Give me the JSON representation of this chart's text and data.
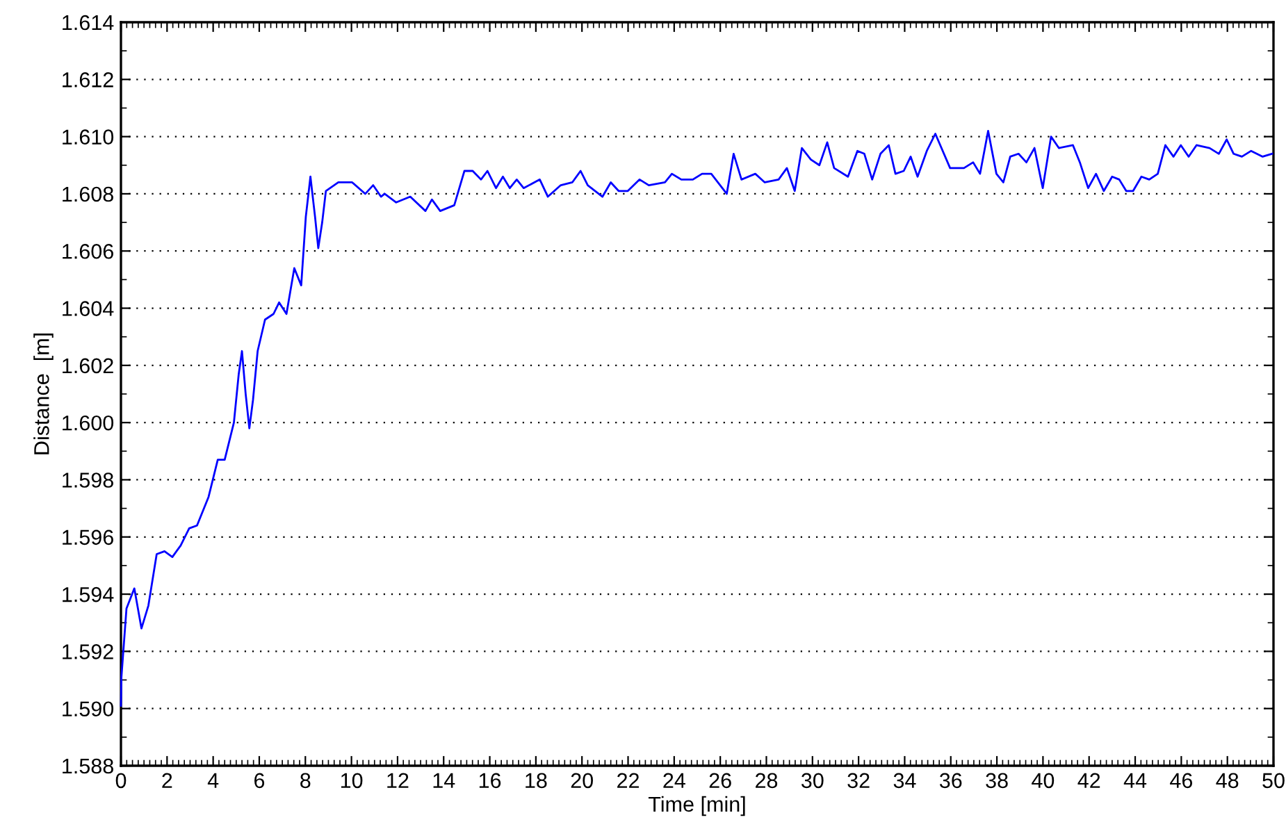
{
  "chart_data": {
    "type": "line",
    "xlabel": "Time [min]",
    "ylabel": "Distance  [m]",
    "xlim": [
      0,
      50
    ],
    "ylim": [
      1.588,
      1.614
    ],
    "xticks": [
      0,
      2,
      4,
      6,
      8,
      10,
      12,
      14,
      16,
      18,
      20,
      22,
      24,
      26,
      28,
      30,
      32,
      34,
      36,
      38,
      40,
      42,
      44,
      46,
      48,
      50
    ],
    "yticks": [
      {
        "value": 1.588,
        "label": "1.588"
      },
      {
        "value": 1.59,
        "label": "1.590"
      },
      {
        "value": 1.592,
        "label": "1.592"
      },
      {
        "value": 1.594,
        "label": "1.594"
      },
      {
        "value": 1.596,
        "label": "1.596"
      },
      {
        "value": 1.598,
        "label": "1.598"
      },
      {
        "value": 1.6,
        "label": "1.600"
      },
      {
        "value": 1.602,
        "label": "1.602"
      },
      {
        "value": 1.604,
        "label": "1.604"
      },
      {
        "value": 1.606,
        "label": "1.606"
      },
      {
        "value": 1.608,
        "label": "1.608"
      },
      {
        "value": 1.61,
        "label": "1.610"
      },
      {
        "value": 1.612,
        "label": "1.612"
      },
      {
        "value": 1.614,
        "label": "1.614"
      }
    ],
    "grid": "y",
    "line_style": "solid",
    "marker": "none",
    "series": [
      {
        "color": "#0000ff",
        "x": [
          0,
          0.02,
          0.24,
          0.58,
          0.89,
          1.19,
          1.55,
          1.89,
          2.23,
          2.59,
          2.96,
          3.3,
          3.8,
          4.2,
          4.5,
          4.9,
          5.11,
          5.25,
          5.41,
          5.57,
          5.73,
          5.93,
          6.25,
          6.62,
          6.86,
          7.18,
          7.52,
          7.82,
          8.02,
          8.22,
          8.42,
          8.56,
          8.73,
          8.89,
          9.43,
          10.03,
          10.6,
          10.94,
          11.28,
          11.44,
          11.94,
          12.55,
          13.21,
          13.49,
          13.85,
          14.46,
          14.9,
          15.26,
          15.62,
          15.9,
          16.27,
          16.57,
          16.87,
          17.17,
          17.47,
          18.17,
          18.52,
          19.08,
          19.58,
          19.94,
          20.25,
          20.89,
          21.25,
          21.59,
          21.99,
          22.5,
          22.9,
          23.6,
          23.9,
          24.31,
          24.81,
          25.21,
          25.61,
          26.28,
          26.58,
          26.92,
          27.52,
          27.93,
          28.53,
          28.89,
          29.23,
          29.54,
          29.93,
          30.3,
          30.64,
          30.94,
          31.54,
          31.95,
          32.25,
          32.59,
          32.95,
          33.31,
          33.6,
          33.96,
          34.26,
          34.56,
          34.96,
          35.33,
          35.97,
          36.57,
          36.97,
          37.27,
          37.62,
          37.98,
          38.28,
          38.58,
          38.94,
          39.28,
          39.63,
          39.99,
          40.35,
          40.69,
          41.3,
          41.6,
          41.96,
          42.3,
          42.64,
          43.0,
          43.31,
          43.61,
          43.91,
          44.27,
          44.61,
          44.98,
          45.31,
          45.66,
          45.98,
          46.32,
          46.66,
          47.23,
          47.63,
          47.97,
          48.27,
          48.63,
          49.03,
          49.53,
          49.94
        ],
        "values": [
          1.5901,
          1.5911,
          1.5935,
          1.5942,
          1.5928,
          1.5936,
          1.5954,
          1.5955,
          1.5953,
          1.5957,
          1.5963,
          1.5964,
          1.5974,
          1.5987,
          1.5987,
          1.6,
          1.6017,
          1.6025,
          1.601,
          1.5998,
          1.6008,
          1.6025,
          1.6036,
          1.6038,
          1.6042,
          1.6038,
          1.6054,
          1.6048,
          1.6072,
          1.6086,
          1.6072,
          1.6061,
          1.607,
          1.6081,
          1.6084,
          1.6084,
          1.608,
          1.6083,
          1.6079,
          1.608,
          1.6077,
          1.6079,
          1.6074,
          1.6078,
          1.6074,
          1.6076,
          1.6088,
          1.6088,
          1.6085,
          1.6088,
          1.6082,
          1.6086,
          1.6082,
          1.6085,
          1.6082,
          1.6085,
          1.6079,
          1.6083,
          1.6084,
          1.6088,
          1.6083,
          1.6079,
          1.6084,
          1.6081,
          1.6081,
          1.6085,
          1.6083,
          1.6084,
          1.6087,
          1.6085,
          1.6085,
          1.6087,
          1.6087,
          1.608,
          1.6094,
          1.6085,
          1.6087,
          1.6084,
          1.6085,
          1.6089,
          1.6081,
          1.6096,
          1.6092,
          1.609,
          1.6098,
          1.6089,
          1.6086,
          1.6095,
          1.6094,
          1.6085,
          1.6094,
          1.6097,
          1.6087,
          1.6088,
          1.6093,
          1.6086,
          1.6095,
          1.6101,
          1.6089,
          1.6089,
          1.6091,
          1.6087,
          1.6102,
          1.6087,
          1.6084,
          1.6093,
          1.6094,
          1.6091,
          1.6096,
          1.6082,
          1.61,
          1.6096,
          1.6097,
          1.6091,
          1.6082,
          1.6087,
          1.6081,
          1.6086,
          1.6085,
          1.6081,
          1.6081,
          1.6086,
          1.6085,
          1.6087,
          1.6097,
          1.6093,
          1.6097,
          1.6093,
          1.6097,
          1.6096,
          1.6094,
          1.6099,
          1.6094,
          1.6093,
          1.6095,
          1.6093,
          1.6094
        ]
      }
    ]
  }
}
